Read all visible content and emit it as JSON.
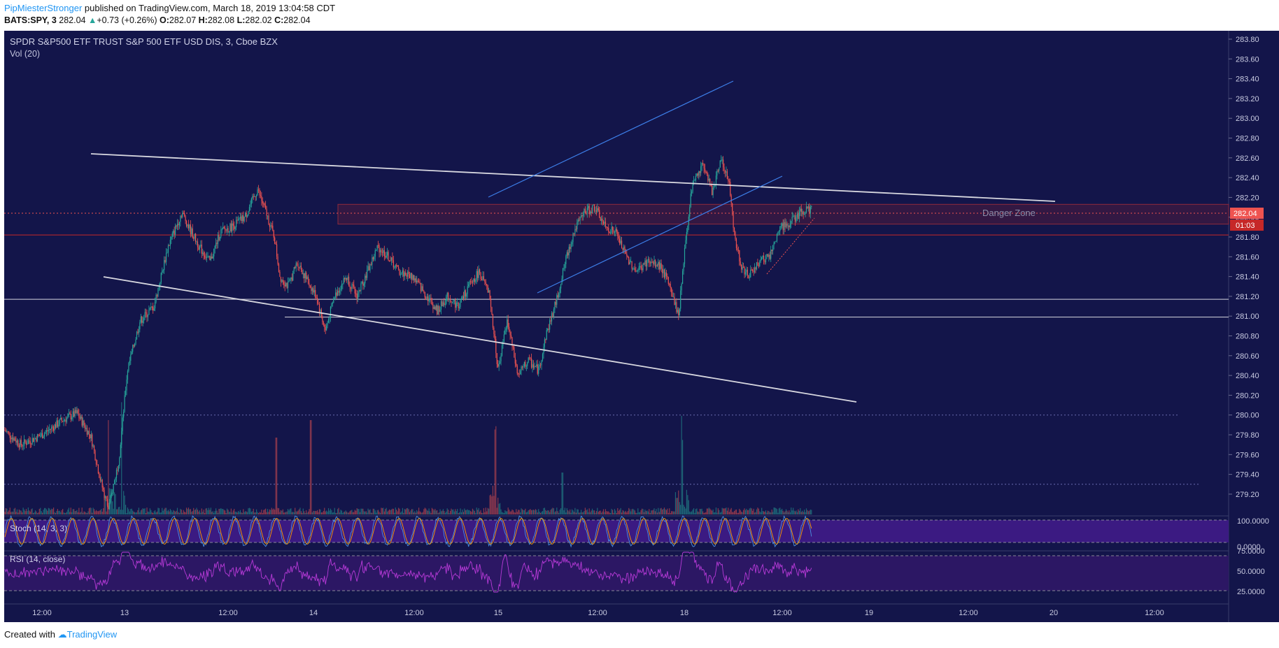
{
  "header": {
    "author": "PipMiesterStronger",
    "published": "published on TradingView.com, March 18, 2019 13:04:58 CDT",
    "symbol": "BATS:SPY, 3",
    "last": "282.04",
    "change": "+0.73 (+0.26%)",
    "o_label": "O:",
    "o_value": "282.07",
    "h_label": "H:",
    "h_value": "282.08",
    "l_label": "L:",
    "l_value": "282.02",
    "c_label": "C:",
    "c_value": "282.04"
  },
  "footer": {
    "created_with": "Created with",
    "brand": "TradingView"
  },
  "colors": {
    "background": "#13154a",
    "bull": "#26a69a",
    "bear": "#ef5350",
    "trendline": "#d8d8e0",
    "channel": "#3d7ee8",
    "danger_zone": "#c62828",
    "stoch_bg": "#3b1a82",
    "rsi_bg": "#2c1764",
    "rsi_line": "#b83ad8"
  },
  "chart_data": {
    "type": "candlestick",
    "title": "SPDR S&P500 ETF TRUST S&P 500 ETF USD DIS, 3, Cboe BZX",
    "volume_label": "Vol (20)",
    "y_ticks": [
      "283.80",
      "283.60",
      "283.40",
      "283.20",
      "283.00",
      "282.80",
      "282.60",
      "282.40",
      "282.20",
      "282.00",
      "281.80",
      "281.60",
      "281.40",
      "281.20",
      "281.00",
      "280.80",
      "280.60",
      "280.40",
      "280.20",
      "280.00",
      "279.80",
      "279.60",
      "279.40",
      "279.20"
    ],
    "ylim": [
      279.2,
      283.8
    ],
    "x_ticks": [
      "12:00",
      "13",
      "12:00",
      "14",
      "12:00",
      "15",
      "12:00",
      "18",
      "12:00",
      "19",
      "12:00",
      "20",
      "12:00"
    ],
    "last_price_label": "282.04",
    "countdown_label": "01:03",
    "price_path": [
      [
        "12 10:00",
        279.88
      ],
      [
        "12 11:00",
        279.7
      ],
      [
        "12 12:00",
        279.78
      ],
      [
        "12 13:00",
        279.95
      ],
      [
        "12 13:30",
        280.0
      ],
      [
        "12 14:30",
        279.75
      ],
      [
        "12 15:00",
        279.3
      ],
      [
        "12 15:30",
        279.1
      ],
      [
        "13 09:30",
        279.55
      ],
      [
        "13 10:30",
        280.45
      ],
      [
        "13 11:00",
        280.85
      ],
      [
        "13 11:30",
        281.05
      ],
      [
        "13 12:30",
        281.6
      ],
      [
        "13 13:00",
        281.95
      ],
      [
        "13 13:30",
        282.1
      ],
      [
        "13 14:00",
        281.9
      ],
      [
        "13 14:30",
        281.65
      ],
      [
        "13 15:00",
        281.85
      ],
      [
        "13 15:30",
        282.0
      ],
      [
        "13 16:00",
        282.0
      ],
      [
        "13 09:30",
        282.0
      ],
      [
        "13 11:30",
        282.02
      ],
      [
        "13 12:30",
        282.3
      ],
      [
        "13 13:00",
        282.15
      ],
      [
        "13 13:30",
        282.0
      ],
      [
        "13 14:30",
        281.4
      ],
      [
        "13 15:00",
        281.25
      ],
      [
        "13 15:30",
        281.6
      ],
      [
        "14 09:30",
        281.3
      ],
      [
        "14 10:00",
        281.25
      ],
      [
        "14 10:30",
        280.85
      ],
      [
        "14 11:00",
        281.3
      ],
      [
        "14 11:30",
        281.5
      ],
      [
        "14 12:00",
        281.4
      ],
      [
        "14 12:30",
        281.7
      ],
      [
        "14 13:30",
        281.6
      ],
      [
        "14 14:30",
        281.35
      ],
      [
        "14 15:00",
        281.1
      ],
      [
        "14 15:30",
        281.2
      ],
      [
        "15 09:30",
        281.25
      ],
      [
        "15 10:00",
        281.45
      ],
      [
        "15 10:30",
        281.2
      ],
      [
        "15 11:00",
        280.8
      ],
      [
        "15 11:30",
        280.45
      ],
      [
        "15 12:00",
        280.55
      ],
      [
        "15 12:30",
        280.4
      ],
      [
        "15 13:00",
        280.75
      ],
      [
        "15 13:30",
        281.1
      ],
      [
        "15 14:00",
        281.4
      ],
      [
        "15 14:30",
        281.75
      ],
      [
        "15 15:00",
        282.0
      ],
      [
        "15 15:30",
        282.05
      ],
      [
        "18 09:30",
        281.9
      ],
      [
        "18 10:00",
        281.65
      ],
      [
        "18 10:30",
        281.5
      ],
      [
        "18 11:00",
        281.55
      ],
      [
        "18 11:30",
        281.15
      ],
      [
        "18 12:00",
        281.05
      ],
      [
        "18 12:30",
        281.9
      ],
      [
        "18 13:00",
        282.4
      ],
      [
        "18 13:30",
        282.55
      ],
      [
        "18 14:00",
        282.3
      ],
      [
        "18 14:30",
        282.6
      ],
      [
        "18 15:00",
        282.2
      ],
      [
        "18 15:30",
        281.6
      ],
      [
        "18 09:30",
        281.4
      ],
      [
        "18 10:00",
        281.5
      ],
      [
        "18 10:30",
        281.55
      ],
      [
        "18 11:00",
        281.8
      ],
      [
        "18 11:30",
        281.95
      ],
      [
        "18 12:00",
        281.9
      ],
      [
        "18 12:30",
        282.1
      ]
    ],
    "trend_lines": [
      {
        "name": "upper resistance",
        "from": [
          130,
          220
        ],
        "to": [
          1508,
          288
        ]
      },
      {
        "name": "lower support",
        "from": [
          148,
          396
        ],
        "to": [
          1224,
          575
        ]
      },
      {
        "name": "channel top",
        "from": [
          698,
          282
        ],
        "to": [
          1048,
          116
        ]
      },
      {
        "name": "channel bottom",
        "from": [
          768,
          419
        ],
        "to": [
          1118,
          252
        ]
      }
    ],
    "horizontal_levels": [
      281.17,
      280.99,
      281.82,
      282.04,
      280.0,
      279.3
    ],
    "zone": {
      "label": "Danger Zone",
      "from": 281.93,
      "to": 282.13
    },
    "stoch": {
      "label": "Stoch (14, 3, 3)",
      "ticks": [
        "100.0000",
        "0.0000"
      ],
      "bands": [
        80,
        20
      ]
    },
    "rsi": {
      "label": "RSI (14, close)",
      "ticks": [
        "75.0000",
        "50.0000",
        "25.0000"
      ],
      "bands": [
        70,
        30
      ]
    }
  }
}
